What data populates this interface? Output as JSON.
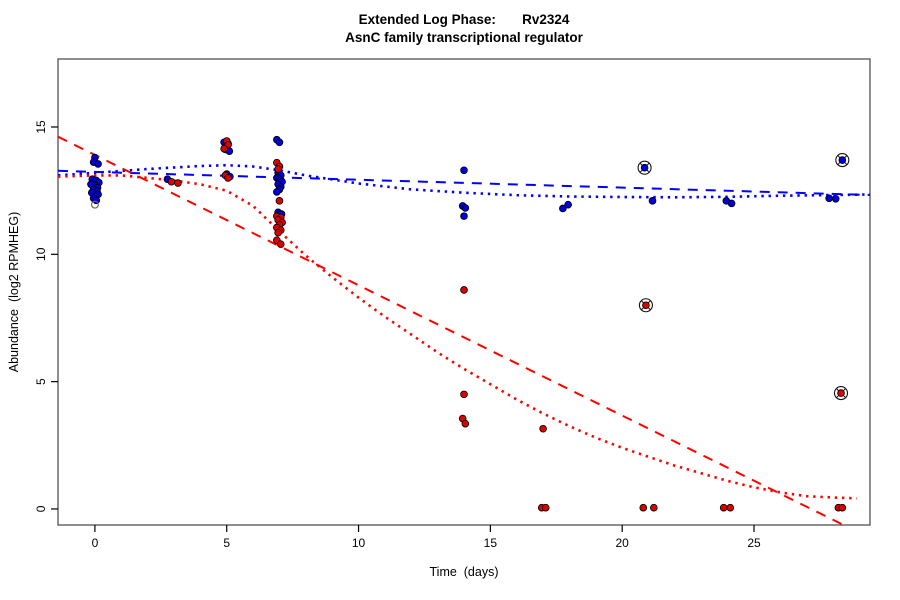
{
  "chart_data": {
    "type": "scatter",
    "title_line1": "Extended Log Phase:       Rv2324",
    "title_line2": "AsnC family transcriptional regulator",
    "xlabel": "Time  (days)",
    "ylabel": "Abundance  (log2 RPMHEG)",
    "xlim": [
      -1.4,
      29.4
    ],
    "ylim": [
      -0.63,
      17.67
    ],
    "xticks": [
      0,
      5,
      10,
      15,
      20,
      25
    ],
    "yticks": [
      0,
      5,
      10,
      15
    ],
    "colors": {
      "blue_point_fill": "#0000dd",
      "red_point_fill": "#dd0000",
      "point_edge": "#000000",
      "blue_line": "#0000ff",
      "red_line": "#ff0000",
      "box": "#444444",
      "gray_open": "#666666"
    },
    "series": [
      {
        "name": "blue-points",
        "color_key": "blue_point_fill",
        "points": [
          [
            0.0,
            13.8
          ],
          [
            -0.05,
            13.62
          ],
          [
            0.12,
            13.55
          ],
          [
            -0.1,
            12.95
          ],
          [
            0.05,
            12.9
          ],
          [
            0.15,
            12.82
          ],
          [
            -0.15,
            12.75
          ],
          [
            0.0,
            12.7
          ],
          [
            0.1,
            12.62
          ],
          [
            -0.05,
            12.55
          ],
          [
            0.08,
            12.48
          ],
          [
            -0.12,
            12.42
          ],
          [
            0.12,
            12.35
          ],
          [
            0.0,
            12.28
          ],
          [
            -0.05,
            12.2
          ],
          [
            0.05,
            12.12
          ],
          [
            2.75,
            12.95
          ],
          [
            4.9,
            14.4
          ],
          [
            5.05,
            14.35
          ],
          [
            5.0,
            14.25
          ],
          [
            4.95,
            14.12
          ],
          [
            5.1,
            14.05
          ],
          [
            5.0,
            13.15
          ],
          [
            5.12,
            13.05
          ],
          [
            6.9,
            14.5
          ],
          [
            7.0,
            14.4
          ],
          [
            6.95,
            13.2
          ],
          [
            7.05,
            13.1
          ],
          [
            6.9,
            13.0
          ],
          [
            7.0,
            12.95
          ],
          [
            7.1,
            12.85
          ],
          [
            6.95,
            12.75
          ],
          [
            7.05,
            12.65
          ],
          [
            7.0,
            12.55
          ],
          [
            6.9,
            12.45
          ],
          [
            6.95,
            11.65
          ],
          [
            7.08,
            11.58
          ],
          [
            14.0,
            13.3
          ],
          [
            13.95,
            11.9
          ],
          [
            14.05,
            11.82
          ],
          [
            14.0,
            11.5
          ],
          [
            17.75,
            11.8
          ],
          [
            17.95,
            11.95
          ],
          [
            21.15,
            12.1
          ],
          [
            23.95,
            12.1
          ],
          [
            24.15,
            12.0
          ],
          [
            27.85,
            12.2
          ],
          [
            28.1,
            12.18
          ]
        ]
      },
      {
        "name": "red-points",
        "color_key": "red_point_fill",
        "points": [
          [
            2.9,
            12.85
          ],
          [
            3.15,
            12.8
          ],
          [
            5.0,
            14.45
          ],
          [
            5.05,
            14.3
          ],
          [
            4.9,
            14.15
          ],
          [
            4.95,
            13.1
          ],
          [
            5.05,
            13.0
          ],
          [
            6.9,
            13.6
          ],
          [
            7.0,
            13.45
          ],
          [
            6.95,
            13.35
          ],
          [
            7.0,
            12.1
          ],
          [
            6.9,
            11.5
          ],
          [
            7.05,
            11.45
          ],
          [
            6.95,
            11.35
          ],
          [
            7.1,
            11.25
          ],
          [
            7.0,
            11.15
          ],
          [
            6.9,
            11.05
          ],
          [
            7.05,
            10.95
          ],
          [
            6.95,
            10.85
          ],
          [
            6.9,
            10.55
          ],
          [
            7.05,
            10.4
          ],
          [
            14.0,
            8.6
          ],
          [
            14.0,
            4.5
          ],
          [
            13.95,
            3.55
          ],
          [
            14.05,
            3.35
          ],
          [
            17.0,
            3.15
          ],
          [
            16.95,
            0.05
          ],
          [
            17.1,
            0.05
          ],
          [
            20.8,
            0.05
          ],
          [
            21.2,
            0.05
          ],
          [
            23.85,
            0.05
          ],
          [
            24.1,
            0.05
          ],
          [
            28.2,
            0.05
          ],
          [
            28.35,
            0.05
          ]
        ]
      },
      {
        "name": "blue-circled-points",
        "color_key": "blue_point_fill",
        "circled": true,
        "points": [
          [
            20.85,
            13.4
          ],
          [
            28.35,
            13.7
          ]
        ]
      },
      {
        "name": "red-circled-points",
        "color_key": "red_point_fill",
        "circled": true,
        "points": [
          [
            20.9,
            8.0
          ],
          [
            28.3,
            4.55
          ]
        ]
      },
      {
        "name": "gray-open-points",
        "color_key": "gray_open",
        "open": true,
        "points": [
          [
            0.0,
            11.95
          ]
        ]
      }
    ],
    "lines": [
      {
        "name": "blue-linear-fit",
        "style": "dashed",
        "color_key": "blue_line",
        "points": [
          [
            -1.4,
            13.28
          ],
          [
            29.4,
            12.33
          ]
        ]
      },
      {
        "name": "blue-loess-fit",
        "style": "dotted",
        "color_key": "blue_line",
        "points": [
          [
            -1.4,
            13.1
          ],
          [
            0,
            13.2
          ],
          [
            2,
            13.35
          ],
          [
            4,
            13.47
          ],
          [
            5,
            13.5
          ],
          [
            6,
            13.45
          ],
          [
            7,
            13.3
          ],
          [
            8,
            13.1
          ],
          [
            10,
            12.78
          ],
          [
            12,
            12.55
          ],
          [
            14,
            12.42
          ],
          [
            16,
            12.32
          ],
          [
            18,
            12.27
          ],
          [
            20,
            12.25
          ],
          [
            22,
            12.24
          ],
          [
            24,
            12.26
          ],
          [
            26,
            12.3
          ],
          [
            28,
            12.33
          ],
          [
            29.4,
            12.35
          ]
        ]
      },
      {
        "name": "red-linear-fit",
        "style": "dashed",
        "color_key": "red_line",
        "points": [
          [
            -1.4,
            14.62
          ],
          [
            28.4,
            -0.63
          ]
        ]
      },
      {
        "name": "red-loess-fit",
        "style": "dotted",
        "color_key": "red_line",
        "points": [
          [
            -1.4,
            13.05
          ],
          [
            0,
            13.1
          ],
          [
            1,
            13.1
          ],
          [
            2,
            13.0
          ],
          [
            3,
            12.9
          ],
          [
            4,
            12.75
          ],
          [
            5,
            12.5
          ],
          [
            6,
            11.9
          ],
          [
            7,
            10.9
          ],
          [
            8,
            9.95
          ],
          [
            9,
            9.1
          ],
          [
            10,
            8.3
          ],
          [
            11,
            7.55
          ],
          [
            12,
            6.85
          ],
          [
            13,
            6.15
          ],
          [
            14,
            5.5
          ],
          [
            15,
            4.9
          ],
          [
            16,
            4.3
          ],
          [
            17,
            3.75
          ],
          [
            18,
            3.25
          ],
          [
            19,
            2.8
          ],
          [
            20,
            2.4
          ],
          [
            21,
            2.05
          ],
          [
            22,
            1.7
          ],
          [
            23,
            1.4
          ],
          [
            24,
            1.1
          ],
          [
            25,
            0.85
          ],
          [
            26,
            0.65
          ],
          [
            27,
            0.5
          ],
          [
            28,
            0.45
          ],
          [
            28.9,
            0.42
          ]
        ]
      }
    ]
  }
}
